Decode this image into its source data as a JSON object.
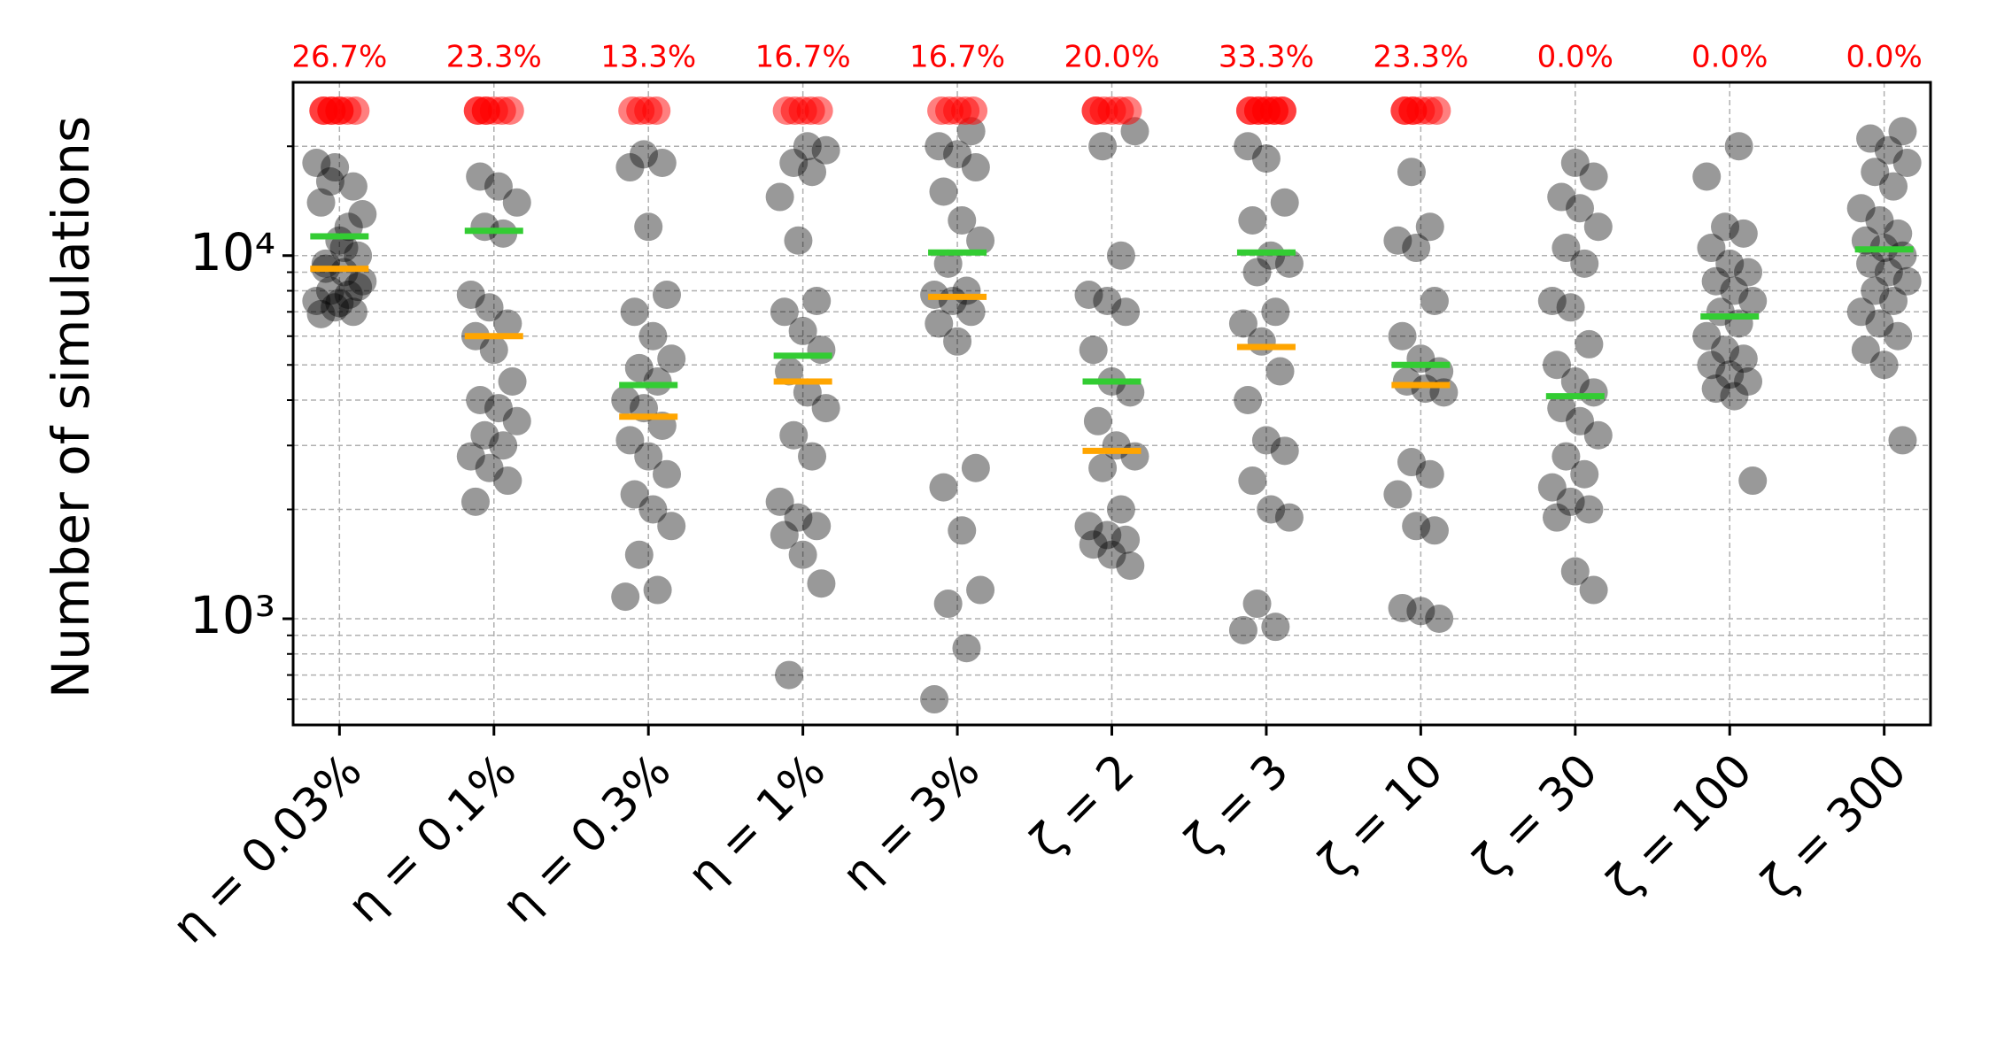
{
  "chart_data": {
    "type": "strip",
    "y_label": "Number of simulations",
    "categories": [
      "η = 0.03%",
      "η = 0.1%",
      "η = 0.3%",
      "η = 1%",
      "η = 3%",
      "ζ = 2",
      "ζ = 3",
      "ζ = 10",
      "ζ = 30",
      "ζ = 100",
      "ζ = 300"
    ],
    "points": [
      [
        18000,
        17500,
        15500,
        14000,
        11000,
        10000,
        9500,
        9000,
        8500,
        8000,
        7800,
        7500,
        7200,
        7000,
        6900,
        7400,
        8200,
        9200,
        10500,
        13000,
        16000,
        12000
      ],
      [
        16500,
        15500,
        14000,
        12000,
        11500,
        7800,
        7200,
        6500,
        6000,
        5500,
        4500,
        4000,
        3800,
        3500,
        3200,
        3000,
        2800,
        2600,
        2400,
        2100
      ],
      [
        19000,
        18000,
        17500,
        12000,
        7800,
        7000,
        6000,
        5200,
        4900,
        4500,
        4000,
        3800,
        3400,
        3100,
        2800,
        2500,
        2200,
        2000,
        1800,
        1500,
        1200,
        1150
      ],
      [
        20000,
        19500,
        18000,
        17000,
        14500,
        11000,
        7500,
        7000,
        6200,
        5500,
        4800,
        4200,
        3800,
        3200,
        2800,
        2100,
        1900,
        1800,
        1700,
        1500,
        1250,
        700
      ],
      [
        22000,
        20000,
        19000,
        17500,
        15000,
        12500,
        11000,
        9500,
        8000,
        7800,
        7500,
        7000,
        6500,
        5800,
        2600,
        2300,
        1750,
        1200,
        1100,
        830,
        600
      ],
      [
        22000,
        20000,
        10000,
        7800,
        7500,
        7000,
        5500,
        4500,
        4200,
        3500,
        3000,
        2800,
        2600,
        2000,
        1800,
        1700,
        1650,
        1600,
        1500,
        1400
      ],
      [
        20000,
        18500,
        14000,
        12500,
        10000,
        9500,
        9000,
        7000,
        6500,
        5800,
        4800,
        4000,
        3100,
        2900,
        2400,
        2000,
        1900,
        1100,
        950,
        930
      ],
      [
        17000,
        12000,
        11000,
        10500,
        7500,
        6000,
        5200,
        4800,
        4500,
        4300,
        4200,
        2700,
        2500,
        2200,
        1800,
        1750,
        1070,
        1050,
        1000
      ],
      [
        18000,
        16500,
        14500,
        13500,
        12000,
        10500,
        9500,
        7500,
        7200,
        5700,
        5000,
        4500,
        4200,
        3800,
        3500,
        3200,
        2800,
        2500,
        2300,
        2100,
        2000,
        1900,
        1350,
        1200
      ],
      [
        20000,
        16500,
        12000,
        11500,
        10500,
        9500,
        9000,
        8500,
        8000,
        7500,
        7000,
        6500,
        6000,
        5500,
        5200,
        5000,
        4700,
        4500,
        4300,
        4100,
        2400
      ],
      [
        22000,
        21000,
        19500,
        18000,
        17000,
        15500,
        13500,
        12500,
        11500,
        11000,
        10500,
        10000,
        9500,
        9000,
        8500,
        8000,
        7500,
        7000,
        6500,
        6000,
        5500,
        5000,
        3100
      ]
    ],
    "mean": [
      11300,
      11700,
      4400,
      5300,
      10200,
      4500,
      10200,
      5000,
      4100,
      6800,
      10400
    ],
    "median": [
      9200,
      6000,
      3600,
      4500,
      7700,
      2900,
      5600,
      4400,
      null,
      null,
      null
    ],
    "fail_pct": {
      "values": [
        26.7,
        23.3,
        13.3,
        16.7,
        16.7,
        20.0,
        33.3,
        23.3,
        0.0,
        0.0,
        0.0
      ],
      "value_labels": [
        "26.7%",
        "23.3%",
        "13.3%",
        "16.7%",
        "16.7%",
        "20.0%",
        "33.3%",
        "23.3%",
        "0.0%",
        "0.0%",
        "0.0%"
      ]
    },
    "point_color": "#000000",
    "mean_color": "#33cc33",
    "median_color": "#ffa500",
    "fail_color": "#ff0000",
    "log": true,
    "grid": true,
    "ylim": [
      510,
      30000
    ],
    "yticks": [
      {
        "value": 1000,
        "label": "10³"
      },
      {
        "value": 10000,
        "label": "10⁴"
      }
    ],
    "yminor": [
      600,
      700,
      800,
      900,
      2000,
      3000,
      4000,
      5000,
      6000,
      7000,
      8000,
      9000,
      20000
    ]
  }
}
